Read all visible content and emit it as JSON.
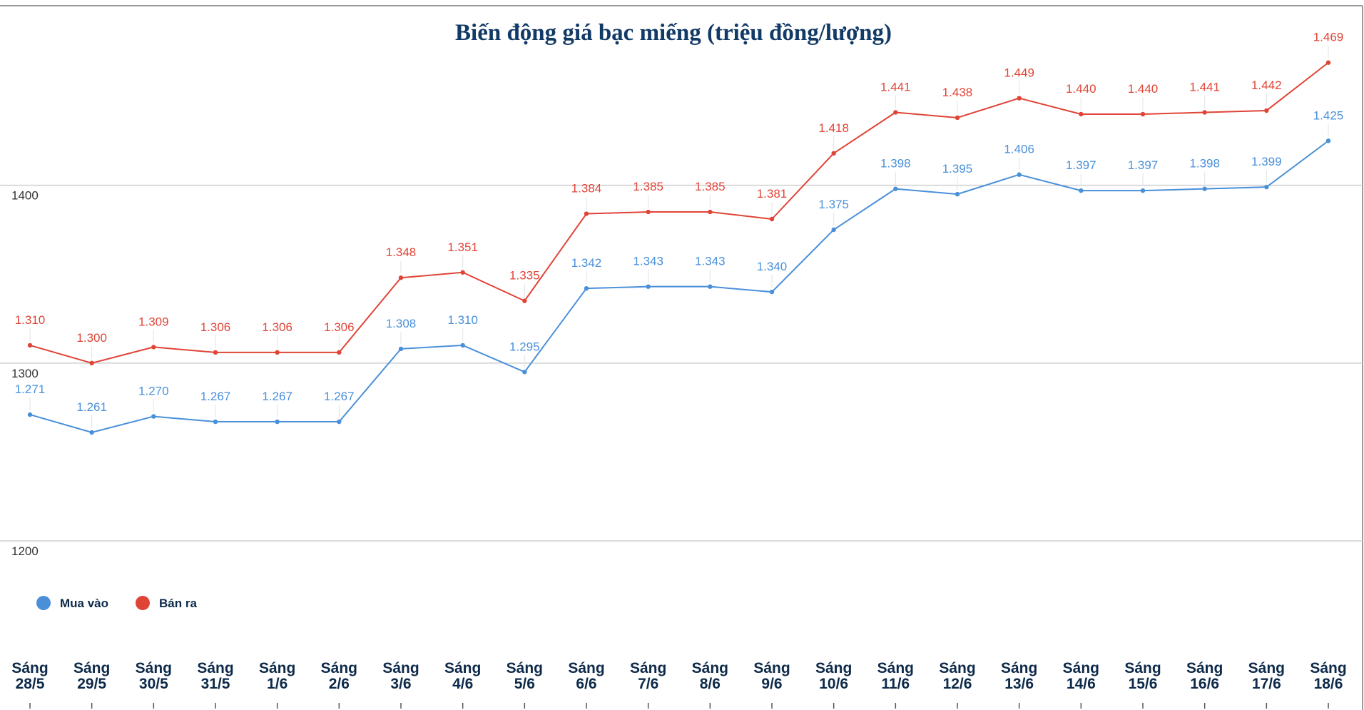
{
  "chart_data": {
    "type": "line",
    "title": "Biến động giá bạc miếng (triệu đồng/lượng)",
    "categories": [
      [
        "Sáng",
        "28/5"
      ],
      [
        "Sáng",
        "29/5"
      ],
      [
        "Sáng",
        "30/5"
      ],
      [
        "Sáng",
        "31/5"
      ],
      [
        "Sáng",
        "1/6"
      ],
      [
        "Sáng",
        "2/6"
      ],
      [
        "Sáng",
        "3/6"
      ],
      [
        "Sáng",
        "4/6"
      ],
      [
        "Sáng",
        "5/6"
      ],
      [
        "Sáng",
        "6/6"
      ],
      [
        "Sáng",
        "7/6"
      ],
      [
        "Sáng",
        "8/6"
      ],
      [
        "Sáng",
        "9/6"
      ],
      [
        "Sáng",
        "10/6"
      ],
      [
        "Sáng",
        "11/6"
      ],
      [
        "Sáng",
        "12/6"
      ],
      [
        "Sáng",
        "13/6"
      ],
      [
        "Sáng",
        "14/6"
      ],
      [
        "Sáng",
        "15/6"
      ],
      [
        "Sáng",
        "16/6"
      ],
      [
        "Sáng",
        "17/6"
      ],
      [
        "Sáng",
        "18/6"
      ]
    ],
    "series": [
      {
        "name": "Mua vào",
        "color": "#4a90d9",
        "values": [
          1271,
          1261,
          1270,
          1267,
          1267,
          1267,
          1308,
          1310,
          1295,
          1342,
          1343,
          1343,
          1340,
          1375,
          1398,
          1395,
          1406,
          1397,
          1397,
          1398,
          1399,
          1425
        ],
        "labels": [
          "1.271",
          "1.261",
          "1.270",
          "1.267",
          "1.267",
          "1.267",
          "1.308",
          "1.310",
          "1.295",
          "1.342",
          "1.343",
          "1.343",
          "1.340",
          "1.375",
          "1.398",
          "1.395",
          "1.406",
          "1.397",
          "1.397",
          "1.398",
          "1.399",
          "1.425"
        ]
      },
      {
        "name": "Bán ra",
        "color": "#e04437",
        "values": [
          1310,
          1300,
          1309,
          1306,
          1306,
          1306,
          1348,
          1351,
          1335,
          1384,
          1385,
          1385,
          1381,
          1418,
          1441,
          1438,
          1449,
          1440,
          1440,
          1441,
          1442,
          1469
        ],
        "labels": [
          "1.310",
          "1.300",
          "1.309",
          "1.306",
          "1.306",
          "1.306",
          "1.348",
          "1.351",
          "1.335",
          "1.384",
          "1.385",
          "1.385",
          "1.381",
          "1.418",
          "1.441",
          "1.438",
          "1.449",
          "1.440",
          "1.440",
          "1.441",
          "1.442",
          "1.469"
        ]
      }
    ],
    "yticks": [
      "1200",
      "1300",
      "1400"
    ],
    "ytick_values": [
      1200,
      1300,
      1400
    ],
    "ylim": [
      1141,
      1501
    ],
    "grid": true,
    "legend_position": "bottom-left"
  }
}
